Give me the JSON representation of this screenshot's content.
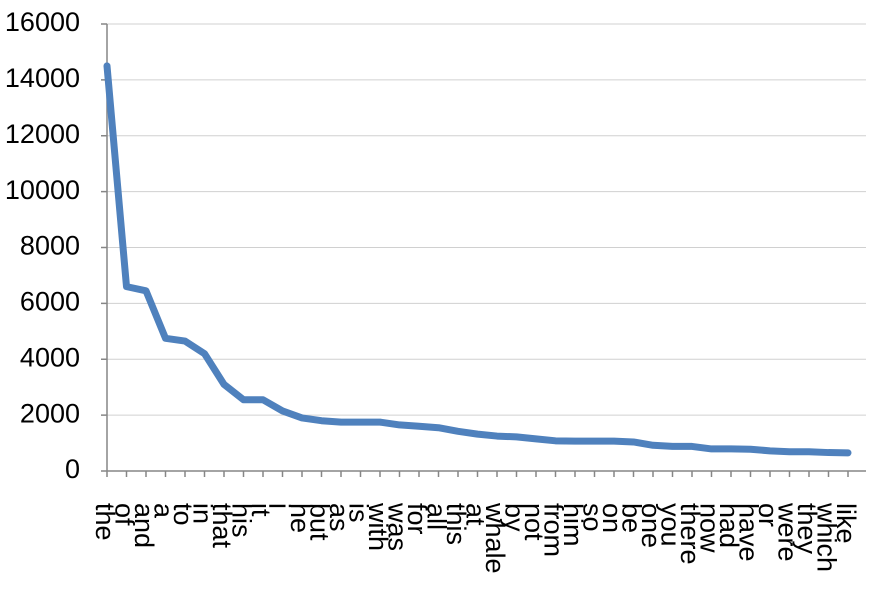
{
  "chart_data": {
    "type": "line",
    "categories": [
      "the",
      "of",
      "and",
      "a",
      "to",
      "in",
      "that",
      "his",
      "it",
      "i",
      "he",
      "but",
      "as",
      "is",
      "with",
      "was",
      "for",
      "all",
      "this",
      "at",
      "whale",
      "by",
      "not",
      "from",
      "him",
      "so",
      "on",
      "be",
      "one",
      "you",
      "there",
      "now",
      "had",
      "have",
      "or",
      "were",
      "they",
      "which",
      "like"
    ],
    "values": [
      14500,
      6600,
      6450,
      4750,
      4650,
      4200,
      3100,
      2550,
      2550,
      2150,
      1900,
      1800,
      1750,
      1750,
      1750,
      1650,
      1600,
      1550,
      1420,
      1320,
      1250,
      1220,
      1150,
      1080,
      1070,
      1070,
      1070,
      1040,
      920,
      880,
      880,
      790,
      790,
      780,
      720,
      690,
      690,
      660,
      650
    ],
    "color": "#4f81bd",
    "ylim": [
      0,
      16000
    ],
    "yticks": [
      0,
      2000,
      4000,
      6000,
      8000,
      10000,
      12000,
      14000,
      16000
    ],
    "grid": true
  }
}
